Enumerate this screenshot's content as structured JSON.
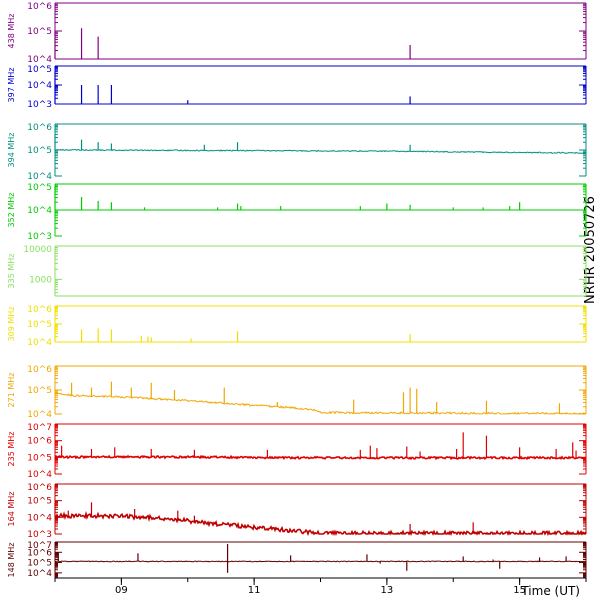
{
  "chart_data": {
    "type": "line",
    "side_title": "NRHR 20050726",
    "x_axis": {
      "label": "Time (UT)",
      "range_hours": [
        8.0,
        16.0
      ],
      "ticks": [
        {
          "hour": 9,
          "label": "09"
        },
        {
          "hour": 11,
          "label": "11"
        },
        {
          "hour": 13,
          "label": "13"
        },
        {
          "hour": 15,
          "label": "15"
        }
      ]
    },
    "panels": [
      {
        "name": "438 MHz",
        "color": "#800080",
        "ylog": [
          4.0,
          6.0
        ],
        "ticks": [
          {
            "exp": 4,
            "label": "10^4"
          },
          {
            "exp": 5,
            "label": "10^5"
          },
          {
            "exp": 6,
            "label": "10^6"
          }
        ],
        "baseline": 4.0,
        "noise": 0.0,
        "trend": [
          [
            8.0,
            4.0
          ],
          [
            16.0,
            4.0
          ]
        ],
        "spikes": [
          [
            8.0,
            5.0
          ],
          [
            8.4,
            5.1
          ],
          [
            8.65,
            4.8
          ],
          [
            13.35,
            4.5
          ]
        ]
      },
      {
        "name": "397 MHz",
        "color": "#0000cc",
        "ylog": [
          3.0,
          5.0
        ],
        "ticks": [
          {
            "exp": 3,
            "label": "10^3"
          },
          {
            "exp": 4,
            "label": "10^4"
          },
          {
            "exp": 5,
            "label": "10^5"
          }
        ],
        "baseline": 3.0,
        "noise": 0.0,
        "trend": [
          [
            8.0,
            3.0
          ],
          [
            16.0,
            3.0
          ]
        ],
        "spikes": [
          [
            8.0,
            4.7
          ],
          [
            8.4,
            4.0
          ],
          [
            8.65,
            4.0
          ],
          [
            8.85,
            4.0
          ],
          [
            10.0,
            3.2
          ],
          [
            13.35,
            3.4
          ]
        ]
      },
      {
        "name": "394 MHz",
        "color": "#009080",
        "ylog": [
          4.0,
          6.0
        ],
        "ticks": [
          {
            "exp": 4,
            "label": "10^4"
          },
          {
            "exp": 5,
            "label": "10^5"
          },
          {
            "exp": 6,
            "label": "10^6"
          }
        ],
        "baseline": 5.0,
        "noise": 0.04,
        "trend": [
          [
            8.0,
            5.0
          ],
          [
            9.5,
            4.98
          ],
          [
            11.0,
            4.97
          ],
          [
            13.0,
            4.95
          ],
          [
            15.0,
            4.9
          ],
          [
            16.0,
            4.88
          ]
        ],
        "spikes": [
          [
            8.0,
            5.6
          ],
          [
            8.4,
            5.4
          ],
          [
            8.65,
            5.3
          ],
          [
            8.85,
            5.25
          ],
          [
            10.25,
            5.2
          ],
          [
            10.75,
            5.3
          ],
          [
            13.35,
            5.2
          ]
        ]
      },
      {
        "name": "352 MHz",
        "color": "#00cc00",
        "ylog": [
          3.0,
          5.0
        ],
        "ticks": [
          {
            "exp": 3,
            "label": "10^3"
          },
          {
            "exp": 4,
            "label": "10^4"
          },
          {
            "exp": 5,
            "label": "10^5"
          }
        ],
        "baseline": 4.0,
        "noise": 0.0,
        "trend": [
          [
            8.0,
            4.0
          ],
          [
            16.0,
            4.0
          ]
        ],
        "spikes": [
          [
            8.0,
            4.9
          ],
          [
            8.4,
            4.5
          ],
          [
            8.65,
            4.35
          ],
          [
            8.85,
            4.3
          ],
          [
            9.35,
            4.1
          ],
          [
            10.45,
            4.1
          ],
          [
            10.75,
            4.25
          ],
          [
            10.8,
            4.15
          ],
          [
            11.4,
            4.15
          ],
          [
            12.6,
            4.15
          ],
          [
            13.0,
            4.25
          ],
          [
            13.35,
            4.2
          ],
          [
            14.0,
            4.1
          ],
          [
            14.45,
            4.1
          ],
          [
            14.85,
            4.15
          ],
          [
            15.0,
            4.3
          ]
        ]
      },
      {
        "name": "335 MHz",
        "color": "#88e060",
        "ylog": [
          2.5,
          4.0
        ],
        "ticks": [
          {
            "exp": 3,
            "label": "1000"
          },
          {
            "exp": 4,
            "label": "10000"
          }
        ],
        "baseline": 2.5,
        "noise": 0.0,
        "trend": [
          [
            8.0,
            2.5
          ],
          [
            16.0,
            2.5
          ]
        ],
        "spikes": []
      },
      {
        "name": "309 MHz",
        "color": "#f0e000",
        "ylog": [
          4.0,
          6.0
        ],
        "ticks": [
          {
            "exp": 4,
            "label": "10^4"
          },
          {
            "exp": 5,
            "label": "10^5"
          },
          {
            "exp": 6,
            "label": "10^6"
          }
        ],
        "baseline": 4.0,
        "noise": 0.0,
        "trend": [
          [
            8.0,
            4.0
          ],
          [
            16.0,
            4.0
          ]
        ],
        "spikes": [
          [
            8.0,
            4.8
          ],
          [
            8.4,
            4.7
          ],
          [
            8.65,
            4.75
          ],
          [
            8.85,
            4.7
          ],
          [
            9.3,
            4.35
          ],
          [
            9.4,
            4.3
          ],
          [
            9.45,
            4.25
          ],
          [
            10.05,
            4.2
          ],
          [
            10.75,
            4.6
          ],
          [
            13.35,
            4.45
          ]
        ]
      },
      {
        "name": "271 MHz",
        "color": "#f0a800",
        "ylog": [
          4.0,
          6.0
        ],
        "ticks": [
          {
            "exp": 4,
            "label": "10^4"
          },
          {
            "exp": 5,
            "label": "10^5"
          },
          {
            "exp": 6,
            "label": "10^6"
          }
        ],
        "baseline": 4.0,
        "noise": 0.08,
        "trend": [
          [
            8.0,
            4.85
          ],
          [
            8.3,
            4.75
          ],
          [
            9.0,
            4.7
          ],
          [
            10.0,
            4.55
          ],
          [
            10.5,
            4.45
          ],
          [
            11.0,
            4.35
          ],
          [
            11.6,
            4.25
          ],
          [
            11.9,
            4.15
          ],
          [
            12.0,
            4.05
          ],
          [
            16.0,
            4.0
          ]
        ],
        "spikes": [
          [
            8.25,
            5.3
          ],
          [
            8.55,
            5.1
          ],
          [
            8.85,
            5.35
          ],
          [
            9.15,
            5.1
          ],
          [
            9.45,
            5.3
          ],
          [
            9.8,
            5.0
          ],
          [
            10.55,
            5.1
          ],
          [
            11.35,
            4.5
          ],
          [
            12.5,
            4.6
          ],
          [
            13.25,
            4.9
          ],
          [
            13.35,
            5.1
          ],
          [
            13.45,
            5.05
          ],
          [
            13.75,
            4.5
          ],
          [
            14.5,
            4.55
          ],
          [
            15.6,
            4.45
          ]
        ]
      },
      {
        "name": "235 MHz",
        "color": "#e00000",
        "ylog": [
          4.0,
          7.0
        ],
        "ticks": [
          {
            "exp": 4,
            "label": "10^4"
          },
          {
            "exp": 5,
            "label": "10^5"
          },
          {
            "exp": 6,
            "label": "10^6"
          },
          {
            "exp": 7,
            "label": "10^7"
          }
        ],
        "baseline": 4.0,
        "noise": 0.12,
        "trend": [
          [
            8.0,
            5.0
          ],
          [
            10.0,
            5.0
          ],
          [
            12.0,
            4.95
          ],
          [
            14.0,
            4.95
          ],
          [
            16.0,
            4.95
          ]
        ],
        "spikes": [
          [
            8.1,
            5.7
          ],
          [
            8.55,
            5.5
          ],
          [
            8.9,
            5.6
          ],
          [
            9.45,
            5.5
          ],
          [
            10.1,
            5.45
          ],
          [
            11.2,
            5.45
          ],
          [
            12.6,
            5.45
          ],
          [
            12.75,
            5.7
          ],
          [
            12.85,
            5.55
          ],
          [
            13.3,
            5.65
          ],
          [
            13.5,
            5.35
          ],
          [
            14.05,
            5.5
          ],
          [
            14.15,
            6.5
          ],
          [
            14.5,
            6.3
          ],
          [
            15.0,
            5.6
          ],
          [
            15.55,
            5.5
          ],
          [
            15.8,
            5.9
          ],
          [
            15.85,
            5.4
          ]
        ]
      },
      {
        "name": "164 MHz",
        "color": "#c00000",
        "ylog": [
          3.0,
          6.0
        ],
        "ticks": [
          {
            "exp": 3,
            "label": "10^3"
          },
          {
            "exp": 4,
            "label": "10^4"
          },
          {
            "exp": 5,
            "label": "10^5"
          },
          {
            "exp": 6,
            "label": "10^6"
          }
        ],
        "baseline": 3.0,
        "noise": 0.25,
        "trend": [
          [
            8.0,
            4.05
          ],
          [
            8.8,
            4.05
          ],
          [
            9.5,
            3.95
          ],
          [
            10.0,
            3.75
          ],
          [
            10.5,
            3.55
          ],
          [
            11.0,
            3.35
          ],
          [
            11.5,
            3.2
          ],
          [
            11.9,
            3.05
          ],
          [
            12.0,
            3.0
          ],
          [
            16.0,
            3.0
          ]
        ],
        "spikes": [
          [
            8.0,
            4.85
          ],
          [
            8.2,
            4.4
          ],
          [
            8.55,
            4.9
          ],
          [
            9.2,
            4.5
          ],
          [
            9.85,
            4.4
          ],
          [
            10.1,
            4.1
          ],
          [
            13.35,
            3.6
          ],
          [
            14.3,
            3.7
          ]
        ]
      },
      {
        "name": "148 MHz",
        "color": "#600000",
        "ylog": [
          3.5,
          7.0
        ],
        "ticks": [
          {
            "exp": 4,
            "label": "10^4"
          },
          {
            "exp": 5,
            "label": "10^5"
          },
          {
            "exp": 6,
            "label": "10^6"
          },
          {
            "exp": 7,
            "label": "10^7"
          }
        ],
        "baseline": 5.0,
        "noise": 0.08,
        "trend": [
          [
            8.0,
            5.1
          ],
          [
            16.0,
            5.1
          ]
        ],
        "spikes": [
          [
            8.05,
            6.0
          ],
          [
            9.25,
            5.9
          ],
          [
            10.6,
            6.8
          ],
          [
            10.6,
            4.0
          ],
          [
            11.55,
            5.7
          ],
          [
            12.7,
            5.8
          ],
          [
            12.9,
            4.9
          ],
          [
            13.3,
            4.2
          ],
          [
            14.15,
            5.6
          ],
          [
            14.6,
            5.3
          ],
          [
            14.7,
            4.4
          ],
          [
            15.3,
            5.5
          ],
          [
            15.7,
            5.6
          ]
        ]
      }
    ]
  }
}
